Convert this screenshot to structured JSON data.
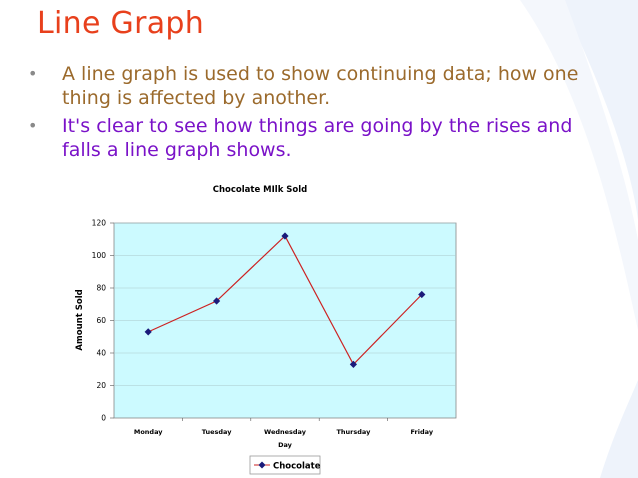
{
  "slide": {
    "title": "Line Graph",
    "bullets": [
      "A line graph is used to show continuing data; how one thing is affected by another.",
      "It's clear to see how things are going by the rises and falls a line graph shows."
    ],
    "bullet_colors": [
      "#9b6a2c",
      "#7a12c8"
    ],
    "title_color": "#e8401c"
  },
  "chart_data": {
    "type": "line",
    "title": "Chocolate MIlk Sold",
    "xlabel": "Day",
    "ylabel": "Amount Sold",
    "categories": [
      "Monday",
      "Tuesday",
      "Wednesday",
      "Thursday",
      "Friday"
    ],
    "series": [
      {
        "name": "Chocolate",
        "values": [
          53,
          72,
          112,
          33,
          76
        ],
        "line_color": "#cc2222",
        "marker_color": "#1a1a7a"
      }
    ],
    "ylim": [
      0,
      120
    ],
    "yticks": [
      0,
      20,
      40,
      60,
      80,
      100,
      120
    ],
    "grid": true,
    "plot_background": "#ccfaff",
    "legend_position": "bottom-center"
  }
}
